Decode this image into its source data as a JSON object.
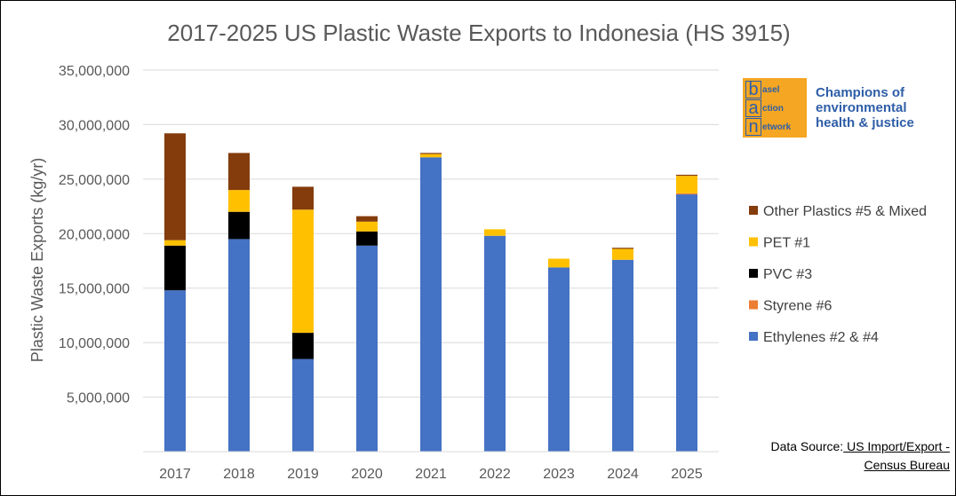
{
  "chart_data": {
    "type": "bar",
    "stacked": true,
    "title": "2017-2025 US Plastic Waste Exports to Indonesia  (HS 3915)",
    "ylabel": "Plastic Waste Exports (kg/yr)",
    "xlabel": "",
    "ylim": [
      0,
      35000000
    ],
    "yticks": [
      5000000,
      10000000,
      15000000,
      20000000,
      25000000,
      30000000,
      35000000
    ],
    "ytick_labels": [
      "5,000,000",
      "10,000,000",
      "15,000,000",
      "20,000,000",
      "25,000,000",
      "30,000,000",
      "35,000,000"
    ],
    "grid": true,
    "legend_position": "right",
    "categories": [
      "2017",
      "2018",
      "2019",
      "2020",
      "2021",
      "2022",
      "2023",
      "2024",
      "2025"
    ],
    "series": [
      {
        "name": "Ethylenes #2 & #4",
        "color": "#4472c4",
        "values": [
          14800000,
          19500000,
          8500000,
          18900000,
          27000000,
          19800000,
          16900000,
          17600000,
          23600000
        ]
      },
      {
        "name": "Styrene #6",
        "color": "#ed7d31",
        "values": [
          0,
          0,
          0,
          0,
          0,
          0,
          0,
          0,
          100000
        ]
      },
      {
        "name": "PVC #3",
        "color": "#000000",
        "values": [
          4100000,
          2500000,
          2400000,
          1300000,
          0,
          0,
          0,
          0,
          0
        ]
      },
      {
        "name": "PET #1",
        "color": "#ffc000",
        "values": [
          500000,
          2000000,
          11300000,
          900000,
          300000,
          600000,
          800000,
          1000000,
          1600000
        ]
      },
      {
        "name": "Other Plastics #5 & Mixed",
        "color": "#843c0c",
        "values": [
          9800000,
          3400000,
          2100000,
          500000,
          100000,
          0,
          0,
          100000,
          100000
        ]
      }
    ]
  },
  "legend_order": [
    4,
    3,
    2,
    1,
    0
  ],
  "logo": {
    "letters": [
      "b",
      "a",
      "n"
    ],
    "words": [
      "asel",
      "ction",
      "etwork"
    ],
    "tagline": "Champions of environmental health & justice",
    "bg_color": "#f5a623",
    "text_color": "#2e5ea8"
  },
  "source": {
    "prefix": "Data Source:",
    "link_text": " US Import/Export - Census Bureau"
  }
}
